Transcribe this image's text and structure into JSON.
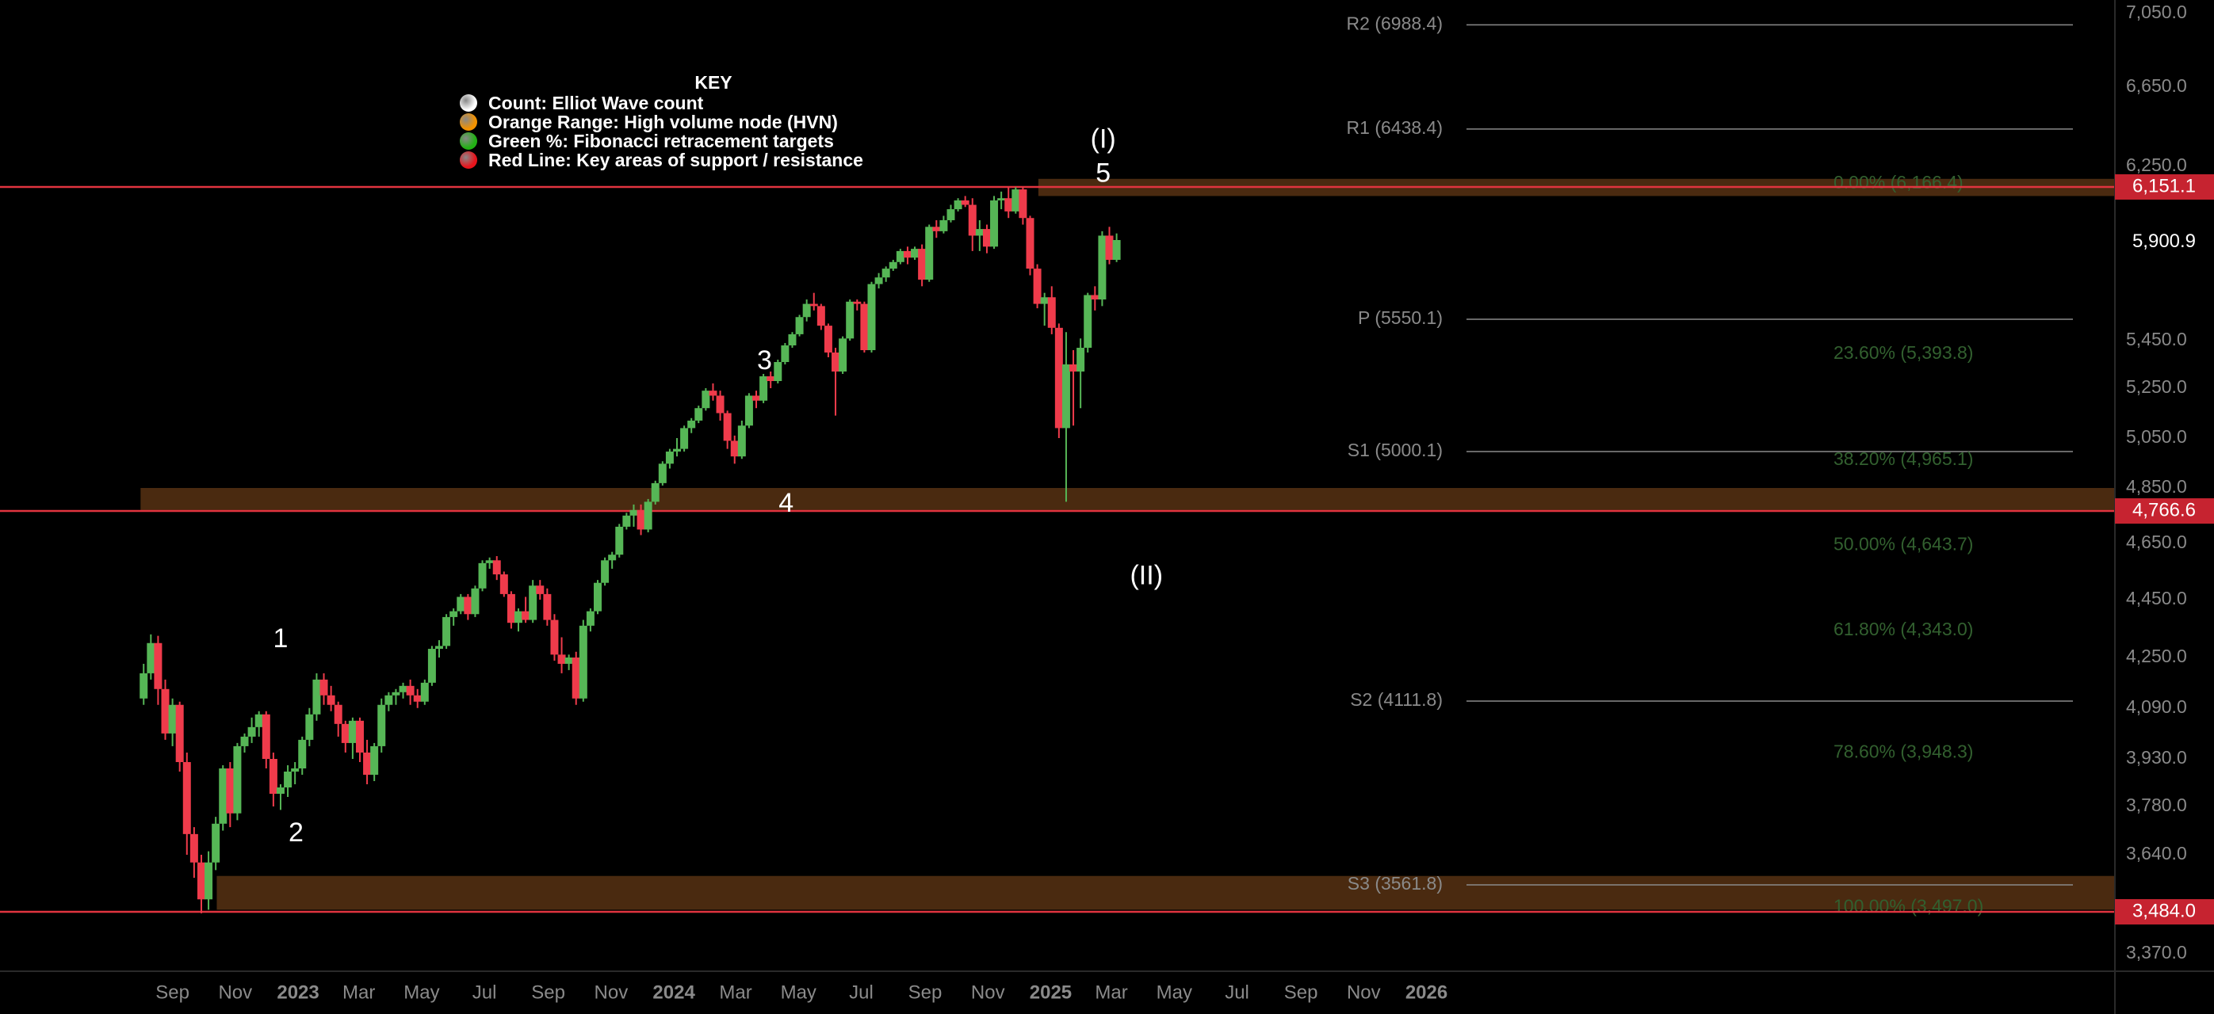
{
  "chart_data": {
    "type": "candlestick",
    "x_axis": {
      "ticks": [
        {
          "label": "Sep",
          "date": "2022-09-01",
          "bold": false
        },
        {
          "label": "Nov",
          "date": "2022-11-01",
          "bold": false
        },
        {
          "label": "2023",
          "date": "2023-01-01",
          "bold": true
        },
        {
          "label": "Mar",
          "date": "2023-03-01",
          "bold": false
        },
        {
          "label": "May",
          "date": "2023-05-01",
          "bold": false
        },
        {
          "label": "Jul",
          "date": "2023-07-01",
          "bold": false
        },
        {
          "label": "Sep",
          "date": "2023-09-01",
          "bold": false
        },
        {
          "label": "Nov",
          "date": "2023-11-01",
          "bold": false
        },
        {
          "label": "2024",
          "date": "2024-01-01",
          "bold": true
        },
        {
          "label": "Mar",
          "date": "2024-03-01",
          "bold": false
        },
        {
          "label": "May",
          "date": "2024-05-01",
          "bold": false
        },
        {
          "label": "Jul",
          "date": "2024-07-01",
          "bold": false
        },
        {
          "label": "Sep",
          "date": "2024-09-01",
          "bold": false
        },
        {
          "label": "Nov",
          "date": "2024-11-01",
          "bold": false
        },
        {
          "label": "2025",
          "date": "2025-01-01",
          "bold": true
        },
        {
          "label": "Mar",
          "date": "2025-03-01",
          "bold": false
        },
        {
          "label": "May",
          "date": "2025-05-01",
          "bold": false
        },
        {
          "label": "Jul",
          "date": "2025-07-01",
          "bold": false
        },
        {
          "label": "Sep",
          "date": "2025-09-01",
          "bold": false
        },
        {
          "label": "Nov",
          "date": "2025-11-01",
          "bold": false
        },
        {
          "label": "2026",
          "date": "2026-01-01",
          "bold": true
        }
      ]
    },
    "y_axis": {
      "position": "right",
      "ticks": [
        "7,050.0",
        "6,650.0",
        "6,250.0",
        "5,450.0",
        "5,250.0",
        "5,050.0",
        "4,850.0",
        "4,650.0",
        "4,450.0",
        "4,250.0",
        "4,090.0",
        "3,930.0",
        "3,780.0",
        "3,640.0",
        "3,370.0"
      ],
      "price_tags": [
        {
          "label": "6,151.1",
          "value": 6151.1,
          "style": "red"
        },
        {
          "label": "5,900.9",
          "value": 5900.9,
          "style": "plain"
        },
        {
          "label": "4,766.6",
          "value": 4766.6,
          "style": "red"
        },
        {
          "label": "3,484.0",
          "value": 3484.0,
          "style": "red"
        }
      ]
    },
    "pivots": [
      {
        "label": "R2 (6988.4)",
        "value": 6988.4
      },
      {
        "label": "R1 (6438.4)",
        "value": 6438.4
      },
      {
        "label": "P (5550.1)",
        "value": 5550.1
      },
      {
        "label": "S1 (5000.1)",
        "value": 5000.1
      },
      {
        "label": "S2 (4111.8)",
        "value": 4111.8
      },
      {
        "label": "S3 (3561.8)",
        "value": 3561.8
      }
    ],
    "fibonacci": [
      {
        "label": "0.00% (6,166.4)",
        "value": 6166.4
      },
      {
        "label": "23.60% (5,393.8)",
        "value": 5393.8
      },
      {
        "label": "38.20% (4,965.1)",
        "value": 4965.1
      },
      {
        "label": "50.00% (4,643.7)",
        "value": 4643.7
      },
      {
        "label": "61.80% (4,343.0)",
        "value": 4343.0
      },
      {
        "label": "78.60% (3,948.3)",
        "value": 3948.3
      },
      {
        "label": "100.00% (3,497.0)",
        "value": 3497.0
      }
    ],
    "support_resistance": [
      6151.1,
      4766.6,
      3484.0
    ],
    "hvn_zones": [
      {
        "from": 6110,
        "to": 6190,
        "start": "2024-12-20"
      },
      {
        "from": 4770,
        "to": 4850,
        "start": "2022-08-01"
      },
      {
        "from": 3490,
        "to": 3585,
        "start": "2022-10-14"
      }
    ],
    "wave_labels": [
      {
        "label": "1",
        "date": "2022-12-15",
        "value": 4310
      },
      {
        "label": "2",
        "date": "2022-12-30",
        "value": 3700
      },
      {
        "label": "3",
        "date": "2024-03-29",
        "value": 5360
      },
      {
        "label": "4",
        "date": "2024-04-19",
        "value": 4790
      },
      {
        "label": "5",
        "date": "2025-02-21",
        "value": 6210
      },
      {
        "label": "(I)",
        "date": "2025-02-21",
        "value": 6380
      },
      {
        "label": "(II)",
        "date": "2025-04-04",
        "value": 4530
      }
    ],
    "candles": {
      "start": "2022-08-01",
      "interval_days": 7,
      "ohlc": [
        [
          4120,
          4230,
          4100,
          4200
        ],
        [
          4200,
          4330,
          4180,
          4300
        ],
        [
          4300,
          4325,
          4100,
          4150
        ],
        [
          4150,
          4180,
          3990,
          4010
        ],
        [
          4010,
          4120,
          3970,
          4100
        ],
        [
          4100,
          4110,
          3890,
          3920
        ],
        [
          3920,
          3950,
          3640,
          3700
        ],
        [
          3700,
          3720,
          3580,
          3620
        ],
        [
          3620,
          3640,
          3480,
          3520
        ],
        [
          3520,
          3650,
          3490,
          3620
        ],
        [
          3620,
          3750,
          3600,
          3730
        ],
        [
          3730,
          3910,
          3710,
          3900
        ],
        [
          3900,
          3920,
          3720,
          3760
        ],
        [
          3760,
          3980,
          3740,
          3970
        ],
        [
          3970,
          4010,
          3950,
          4000
        ],
        [
          4000,
          4060,
          3980,
          4030
        ],
        [
          4030,
          4080,
          4000,
          4070
        ],
        [
          4070,
          4080,
          3900,
          3930
        ],
        [
          3930,
          3950,
          3780,
          3820
        ],
        [
          3820,
          3850,
          3770,
          3840
        ],
        [
          3840,
          3910,
          3810,
          3890
        ],
        [
          3890,
          3920,
          3850,
          3900
        ],
        [
          3900,
          4000,
          3880,
          3990
        ],
        [
          3990,
          4090,
          3970,
          4070
        ],
        [
          4070,
          4200,
          4050,
          4180
        ],
        [
          4180,
          4200,
          4100,
          4130
        ],
        [
          4130,
          4160,
          4080,
          4100
        ],
        [
          4100,
          4110,
          4000,
          4040
        ],
        [
          4040,
          4050,
          3950,
          3980
        ],
        [
          3980,
          4060,
          3930,
          4050
        ],
        [
          4050,
          4060,
          3920,
          3950
        ],
        [
          3950,
          3990,
          3850,
          3880
        ],
        [
          3880,
          3980,
          3860,
          3970
        ],
        [
          3970,
          4120,
          3950,
          4100
        ],
        [
          4100,
          4140,
          4080,
          4130
        ],
        [
          4130,
          4150,
          4100,
          4140
        ],
        [
          4140,
          4170,
          4120,
          4160
        ],
        [
          4160,
          4180,
          4100,
          4130
        ],
        [
          4130,
          4150,
          4090,
          4110
        ],
        [
          4110,
          4180,
          4100,
          4170
        ],
        [
          4170,
          4290,
          4160,
          4280
        ],
        [
          4280,
          4310,
          4250,
          4290
        ],
        [
          4290,
          4400,
          4280,
          4390
        ],
        [
          4390,
          4420,
          4360,
          4410
        ],
        [
          4410,
          4470,
          4400,
          4460
        ],
        [
          4460,
          4470,
          4380,
          4400
        ],
        [
          4400,
          4500,
          4390,
          4490
        ],
        [
          4490,
          4590,
          4480,
          4580
        ],
        [
          4580,
          4600,
          4560,
          4590
        ],
        [
          4590,
          4605,
          4520,
          4540
        ],
        [
          4540,
          4550,
          4460,
          4470
        ],
        [
          4470,
          4480,
          4350,
          4370
        ],
        [
          4370,
          4420,
          4340,
          4410
        ],
        [
          4410,
          4460,
          4370,
          4380
        ],
        [
          4380,
          4520,
          4370,
          4500
        ],
        [
          4500,
          4520,
          4450,
          4470
        ],
        [
          4470,
          4490,
          4360,
          4380
        ],
        [
          4380,
          4400,
          4240,
          4260
        ],
        [
          4260,
          4320,
          4200,
          4230
        ],
        [
          4230,
          4260,
          4210,
          4250
        ],
        [
          4250,
          4270,
          4100,
          4120
        ],
        [
          4120,
          4380,
          4110,
          4360
        ],
        [
          4360,
          4420,
          4340,
          4410
        ],
        [
          4410,
          4520,
          4400,
          4510
        ],
        [
          4510,
          4600,
          4500,
          4590
        ],
        [
          4590,
          4620,
          4560,
          4610
        ],
        [
          4610,
          4720,
          4600,
          4710
        ],
        [
          4710,
          4760,
          4700,
          4750
        ],
        [
          4750,
          4790,
          4710,
          4770
        ],
        [
          4770,
          4790,
          4680,
          4700
        ],
        [
          4700,
          4810,
          4690,
          4800
        ],
        [
          4800,
          4880,
          4790,
          4870
        ],
        [
          4870,
          4960,
          4860,
          4950
        ],
        [
          4950,
          5010,
          4930,
          5000
        ],
        [
          5000,
          5050,
          4980,
          5010
        ],
        [
          5010,
          5100,
          5000,
          5090
        ],
        [
          5090,
          5130,
          5070,
          5120
        ],
        [
          5120,
          5180,
          5110,
          5170
        ],
        [
          5170,
          5250,
          5160,
          5240
        ],
        [
          5240,
          5270,
          5200,
          5220
        ],
        [
          5220,
          5240,
          5120,
          5150
        ],
        [
          5150,
          5160,
          5010,
          5040
        ],
        [
          5040,
          5060,
          4950,
          4980
        ],
        [
          4980,
          5120,
          4970,
          5100
        ],
        [
          5100,
          5230,
          5090,
          5220
        ],
        [
          5220,
          5240,
          5170,
          5200
        ],
        [
          5200,
          5310,
          5190,
          5300
        ],
        [
          5300,
          5320,
          5250,
          5280
        ],
        [
          5280,
          5370,
          5270,
          5360
        ],
        [
          5360,
          5440,
          5350,
          5430
        ],
        [
          5430,
          5490,
          5420,
          5480
        ],
        [
          5480,
          5570,
          5470,
          5560
        ],
        [
          5560,
          5640,
          5540,
          5620
        ],
        [
          5620,
          5670,
          5590,
          5610
        ],
        [
          5610,
          5620,
          5500,
          5520
        ],
        [
          5520,
          5530,
          5380,
          5400
        ],
        [
          5400,
          5420,
          5140,
          5320
        ],
        [
          5320,
          5470,
          5310,
          5460
        ],
        [
          5460,
          5640,
          5450,
          5630
        ],
        [
          5630,
          5640,
          5590,
          5620
        ],
        [
          5620,
          5630,
          5400,
          5410
        ],
        [
          5410,
          5720,
          5400,
          5710
        ],
        [
          5710,
          5760,
          5690,
          5740
        ],
        [
          5740,
          5790,
          5720,
          5780
        ],
        [
          5780,
          5820,
          5770,
          5810
        ],
        [
          5810,
          5870,
          5800,
          5860
        ],
        [
          5860,
          5880,
          5800,
          5830
        ],
        [
          5830,
          5880,
          5820,
          5870
        ],
        [
          5870,
          5890,
          5700,
          5730
        ],
        [
          5730,
          5980,
          5720,
          5970
        ],
        [
          5970,
          6000,
          5920,
          5950
        ],
        [
          5950,
          6020,
          5940,
          6000
        ],
        [
          6000,
          6070,
          5990,
          6050
        ],
        [
          6050,
          6100,
          6040,
          6090
        ],
        [
          6090,
          6110,
          6060,
          6070
        ],
        [
          6070,
          6100,
          5860,
          5930
        ],
        [
          5930,
          6000,
          5860,
          5960
        ],
        [
          5960,
          5980,
          5850,
          5880
        ],
        [
          5880,
          6110,
          5870,
          6090
        ],
        [
          6090,
          6130,
          6050,
          6100
        ],
        [
          6100,
          6150,
          6010,
          6040
        ],
        [
          6040,
          6150,
          6030,
          6140
        ],
        [
          6140,
          6150,
          5980,
          6010
        ],
        [
          6010,
          6020,
          5750,
          5780
        ],
        [
          5780,
          5800,
          5600,
          5620
        ],
        [
          5620,
          5670,
          5520,
          5650
        ],
        [
          5650,
          5700,
          5480,
          5510
        ],
        [
          5510,
          5530,
          5050,
          5090
        ],
        [
          5090,
          5490,
          4800,
          5350
        ],
        [
          5350,
          5410,
          5100,
          5320
        ],
        [
          5320,
          5460,
          5170,
          5420
        ],
        [
          5420,
          5670,
          5400,
          5660
        ],
        [
          5660,
          5700,
          5590,
          5640
        ],
        [
          5640,
          5950,
          5610,
          5930
        ],
        [
          5930,
          5970,
          5800,
          5820
        ],
        [
          5820,
          5940,
          5810,
          5910
        ]
      ]
    }
  },
  "key": {
    "title": "KEY",
    "items": [
      {
        "color": "#ffffff",
        "text": "Count: Elliot Wave count"
      },
      {
        "color": "#f39200",
        "text": "Orange Range: High volume node (HVN)"
      },
      {
        "color": "#22b014",
        "text": "Green %: Fibonacci retracement targets"
      },
      {
        "color": "#e8141c",
        "text": "Red Line: Key areas of support / resistance"
      }
    ]
  },
  "colors": {
    "background": "#000000",
    "up": "#56b656",
    "down": "#ef3b4b",
    "support_line": "#e1343f",
    "price_tag": "#c62330",
    "hvn": "#4a2a10",
    "pivot_line": "#8a8a8a",
    "fib_text": "#32602f",
    "axis_text": "#8a8a8a"
  }
}
